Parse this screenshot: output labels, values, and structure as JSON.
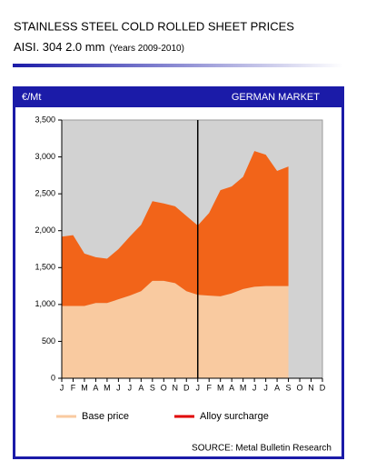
{
  "chart_data": {
    "type": "stacked_area",
    "title": "STAINLESS STEEL COLD ROLLED  SHEET PRICES",
    "subtitle_main": "AISI. 304 2.0 mm",
    "subtitle_note": "(Years 2009-2010)",
    "unit_label": "€/Mt",
    "market_label": "GERMAN MARKET",
    "source": "SOURCE: Metal Bulletin Research",
    "categories": [
      "J",
      "F",
      "M",
      "A",
      "M",
      "J",
      "J",
      "A",
      "S",
      "O",
      "N",
      "D",
      "J",
      "F",
      "M",
      "A",
      "M",
      "J",
      "J",
      "A",
      "S",
      "O",
      "N",
      "D"
    ],
    "series": [
      {
        "name": "Base price",
        "color": "#f9caa0",
        "legend_color": "#f9caa0",
        "values": [
          980,
          980,
          980,
          1020,
          1020,
          1070,
          1120,
          1180,
          1320,
          1320,
          1290,
          1180,
          1130,
          1120,
          1110,
          1150,
          1210,
          1240,
          1250,
          1250,
          1250,
          null,
          null,
          null
        ]
      },
      {
        "name": "Alloy surcharge",
        "color": "#f26419",
        "legend_color": "#e00000",
        "values": [
          940,
          960,
          710,
          620,
          600,
          680,
          800,
          900,
          1080,
          1050,
          1040,
          1020,
          940,
          1120,
          1440,
          1450,
          1520,
          1840,
          1780,
          1560,
          1620,
          null,
          null,
          null
        ]
      }
    ],
    "divider_at": 12,
    "ylim": [
      0,
      3500
    ],
    "yticks": [
      0,
      500,
      {
        "value": 1000,
        "label": "1,000"
      },
      {
        "value": 1500,
        "label": "1,500"
      },
      {
        "value": 2000,
        "label": "2,000"
      },
      {
        "value": 2500,
        "label": "2,500"
      },
      {
        "value": 3000,
        "label": "3,000"
      },
      {
        "value": 3500,
        "label": "3,500"
      }
    ]
  }
}
